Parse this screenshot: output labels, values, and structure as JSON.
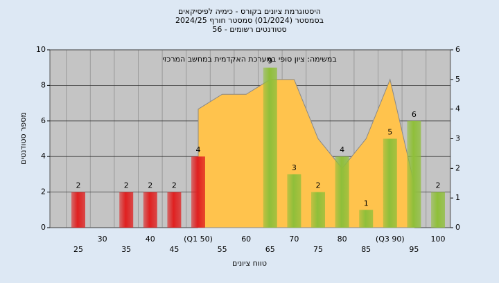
{
  "chart_data": {
    "type": "bar",
    "title": "היסטוגרמת ציונים בקורס - כימיה לפיסיקאים",
    "subtitle": "בסמסטר  (01/2024)  סמסטר חורף 2024/25",
    "subtitle2": "סטודנטים רשומים - 56",
    "annotation": "במשימה: ציון סופי במערכת האקדמית במחשב המרכזי",
    "ylabel": "מספר סטודנטים",
    "xlabel": "טווח ציונים",
    "categories": [
      "25",
      "30",
      "35",
      "40",
      "45",
      "(Q1 50)",
      "55",
      "60",
      "65",
      "70",
      "75",
      "80",
      "85",
      "(Q3 90)",
      "95",
      "100"
    ],
    "values": [
      2,
      null,
      2,
      2,
      2,
      4,
      null,
      null,
      9,
      3,
      2,
      4,
      1,
      5,
      6,
      2
    ],
    "bar_colors": [
      "#e02020",
      "#e02020",
      "#e02020",
      "#e02020",
      "#e02020",
      "#e02020",
      "#e02020",
      "#e02020",
      "#8fbf3a",
      "#8fbf3a",
      "#8fbf3a",
      "#8fbf3a",
      "#8fbf3a",
      "#8fbf3a",
      "#8fbf3a",
      "#8fbf3a"
    ],
    "area": {
      "color": "#ffc34d",
      "axis": "y2",
      "values": [
        null,
        null,
        null,
        null,
        null,
        4,
        4.5,
        4.5,
        5,
        5,
        3,
        2,
        3,
        5,
        1.5,
        null
      ]
    },
    "ylim": [
      0,
      10
    ],
    "yticks": [
      0,
      2,
      4,
      6,
      8,
      10
    ],
    "y2lim": [
      0,
      6
    ],
    "y2ticks": [
      0,
      1,
      2,
      3,
      4,
      5,
      6
    ],
    "grid": true
  }
}
